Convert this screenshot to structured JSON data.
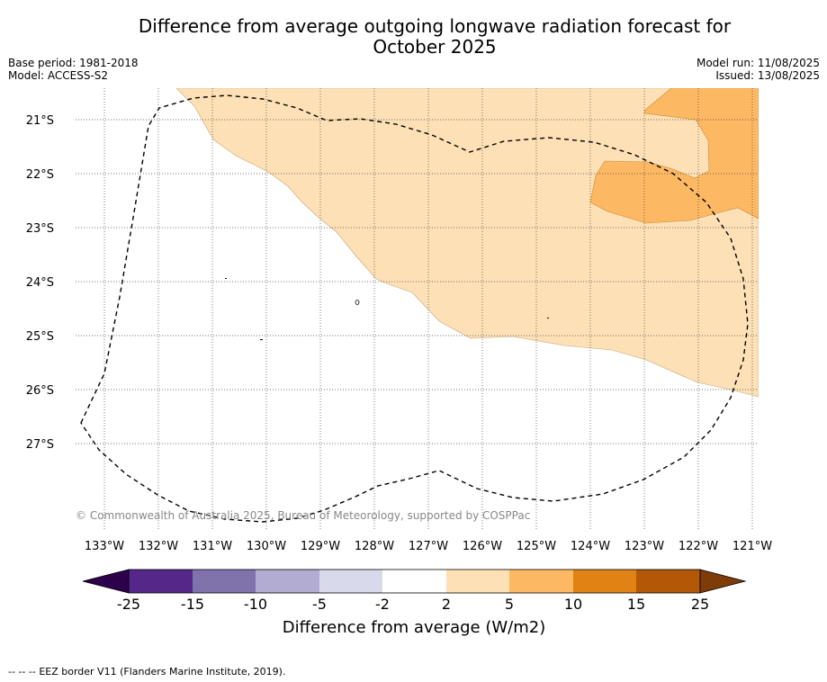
{
  "header": {
    "title_line1": "Difference from average outgoing longwave radiation forecast for",
    "title_line2": "October 2025",
    "base_period": "Base period: 1981-2018",
    "model": "Model: ACCESS-S2",
    "model_run": "Model run: 11/08/2025",
    "issued": "Issued: 13/08/2025"
  },
  "map": {
    "lon_labels": [
      "133°W",
      "132°W",
      "131°W",
      "130°W",
      "129°W",
      "128°W",
      "127°W",
      "126°W",
      "125°W",
      "124°W",
      "123°W",
      "122°W",
      "121°W"
    ],
    "lat_labels": [
      "21°S",
      "22°S",
      "23°S",
      "24°S",
      "25°S",
      "26°S",
      "27°S"
    ],
    "copyright": "© Commonwealth of Australia 2025, Bureau of Meteorology, supported by COSPPac",
    "fill_colors": {
      "range_2_5": "#fde0b6",
      "range_5_10": "#fdb863"
    }
  },
  "colorbar": {
    "title": "Difference from average (W/m2)",
    "ticks": [
      "-25",
      "-15",
      "-10",
      "-5",
      "-2",
      "2",
      "5",
      "10",
      "15",
      "25"
    ],
    "colors": [
      "#2d004b",
      "#542788",
      "#8073ac",
      "#b2abd2",
      "#d8daeb",
      "#ffffff",
      "#fee0b6",
      "#fdb863",
      "#e08214",
      "#b35806",
      "#7f3b08"
    ]
  },
  "footer": {
    "legend_symbol": "-- -- --",
    "legend_text": "EEZ border V11 (Flanders Marine Institute, 2019)."
  }
}
